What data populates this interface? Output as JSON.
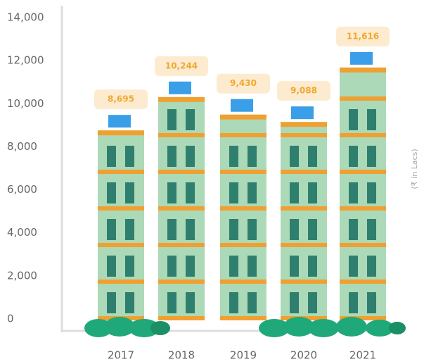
{
  "chart_data": {
    "type": "bar",
    "categories": [
      "2017",
      "2018",
      "2019",
      "2020",
      "2021"
    ],
    "values": [
      8695,
      10244,
      9430,
      9088,
      11616
    ],
    "value_labels": [
      "8,695",
      "10,244",
      "9,430",
      "9,088",
      "11,616"
    ],
    "color": "#acd9b8",
    "ylim": [
      0,
      14000
    ],
    "yticks": [
      0,
      {
        "value": 2000,
        "label": "2,000"
      },
      {
        "value": 4000,
        "label": "4,000"
      },
      {
        "value": 6000,
        "label": "6,000"
      },
      {
        "value": 8000,
        "label": "8,000"
      },
      {
        "value": 10000,
        "label": "10,000"
      },
      {
        "value": 12000,
        "label": "12,000"
      },
      {
        "value": 14000,
        "label": "14,000"
      }
    ],
    "y_axis_label": "(₹ in Lacs)",
    "grid": false
  }
}
